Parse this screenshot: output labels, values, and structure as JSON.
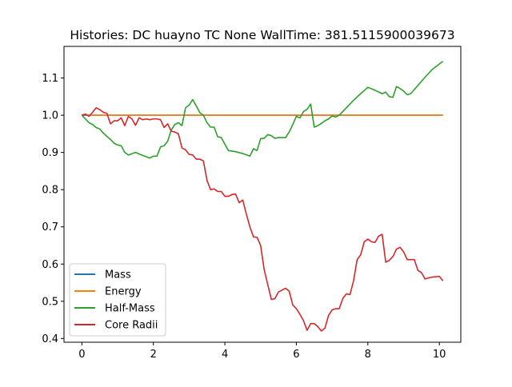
{
  "chart_data": {
    "type": "line",
    "title": "Histories: DC huayno TC None WallTime: 381.5115900039673",
    "xlabel": "",
    "ylabel": "",
    "xlim": [
      -0.5,
      10.6
    ],
    "ylim": [
      0.39,
      1.185
    ],
    "xticks": [
      0,
      2,
      4,
      6,
      8,
      10
    ],
    "xtick_labels": [
      "0",
      "2",
      "4",
      "6",
      "8",
      "10"
    ],
    "yticks": [
      0.4,
      0.5,
      0.6,
      0.7,
      0.8,
      0.9,
      1.0,
      1.1
    ],
    "ytick_labels": [
      "0.4",
      "0.5",
      "0.6",
      "0.7",
      "0.8",
      "0.9",
      "1.0",
      "1.1"
    ],
    "grid": false,
    "legend_position": "lower-left",
    "series": [
      {
        "name": "Mass",
        "color": "#1f77b4",
        "points": [
          [
            0.0,
            1.0
          ],
          [
            10.1,
            1.0
          ]
        ]
      },
      {
        "name": "Energy",
        "color": "#ff7f0e",
        "points": [
          [
            0.0,
            1.001
          ],
          [
            0.1,
            1.002
          ],
          [
            0.2,
            1.0
          ],
          [
            0.3,
            1.0
          ],
          [
            10.1,
            1.0
          ]
        ]
      },
      {
        "name": "Half-Mass",
        "color": "#2ca02c",
        "points": [
          [
            0.0,
            1.0
          ],
          [
            0.1,
            0.99
          ],
          [
            0.2,
            0.98
          ],
          [
            0.3,
            0.975
          ],
          [
            0.4,
            0.967
          ],
          [
            0.5,
            0.963
          ],
          [
            0.6,
            0.952
          ],
          [
            0.7,
            0.943
          ],
          [
            0.8,
            0.935
          ],
          [
            0.9,
            0.925
          ],
          [
            1.0,
            0.92
          ],
          [
            1.1,
            0.918
          ],
          [
            1.2,
            0.9
          ],
          [
            1.3,
            0.893
          ],
          [
            1.5,
            0.9
          ],
          [
            1.7,
            0.892
          ],
          [
            1.9,
            0.885
          ],
          [
            2.0,
            0.89
          ],
          [
            2.1,
            0.89
          ],
          [
            2.2,
            0.915
          ],
          [
            2.3,
            0.918
          ],
          [
            2.4,
            0.93
          ],
          [
            2.5,
            0.96
          ],
          [
            2.6,
            0.975
          ],
          [
            2.7,
            0.98
          ],
          [
            2.8,
            0.972
          ],
          [
            2.9,
            1.02
          ],
          [
            3.0,
            1.027
          ],
          [
            3.1,
            1.042
          ],
          [
            3.2,
            1.025
          ],
          [
            3.3,
            1.007
          ],
          [
            3.4,
            1.0
          ],
          [
            3.5,
            0.98
          ],
          [
            3.6,
            0.968
          ],
          [
            3.7,
            0.968
          ],
          [
            3.8,
            0.942
          ],
          [
            3.9,
            0.94
          ],
          [
            4.0,
            0.922
          ],
          [
            4.1,
            0.905
          ],
          [
            4.3,
            0.902
          ],
          [
            4.5,
            0.897
          ],
          [
            4.7,
            0.89
          ],
          [
            4.8,
            0.91
          ],
          [
            4.9,
            0.905
          ],
          [
            5.0,
            0.937
          ],
          [
            5.1,
            0.938
          ],
          [
            5.2,
            0.948
          ],
          [
            5.3,
            0.945
          ],
          [
            5.4,
            0.938
          ],
          [
            5.5,
            0.94
          ],
          [
            5.7,
            0.94
          ],
          [
            5.8,
            0.955
          ],
          [
            5.9,
            0.975
          ],
          [
            6.0,
            0.997
          ],
          [
            6.1,
            0.993
          ],
          [
            6.2,
            1.01
          ],
          [
            6.3,
            1.016
          ],
          [
            6.4,
            1.03
          ],
          [
            6.5,
            0.968
          ],
          [
            6.6,
            0.972
          ],
          [
            6.7,
            0.978
          ],
          [
            6.8,
            0.985
          ],
          [
            6.9,
            0.99
          ],
          [
            7.0,
            0.998
          ],
          [
            7.1,
            0.995
          ],
          [
            7.2,
            1.0
          ],
          [
            7.4,
            1.02
          ],
          [
            7.6,
            1.04
          ],
          [
            7.8,
            1.058
          ],
          [
            8.0,
            1.075
          ],
          [
            8.2,
            1.067
          ],
          [
            8.4,
            1.058
          ],
          [
            8.5,
            1.062
          ],
          [
            8.6,
            1.05
          ],
          [
            8.7,
            1.048
          ],
          [
            8.8,
            1.077
          ],
          [
            8.9,
            1.072
          ],
          [
            9.0,
            1.065
          ],
          [
            9.1,
            1.055
          ],
          [
            9.2,
            1.058
          ],
          [
            9.4,
            1.08
          ],
          [
            9.6,
            1.102
          ],
          [
            9.8,
            1.123
          ],
          [
            10.1,
            1.145
          ]
        ]
      },
      {
        "name": "Core Radii",
        "color": "#d62728",
        "points": [
          [
            0.0,
            1.0
          ],
          [
            0.1,
            1.003
          ],
          [
            0.2,
            0.997
          ],
          [
            0.3,
            1.008
          ],
          [
            0.4,
            1.02
          ],
          [
            0.5,
            1.015
          ],
          [
            0.6,
            1.008
          ],
          [
            0.7,
            1.005
          ],
          [
            0.8,
            0.977
          ],
          [
            0.9,
            0.985
          ],
          [
            1.0,
            0.985
          ],
          [
            1.1,
            0.993
          ],
          [
            1.2,
            0.972
          ],
          [
            1.3,
            0.997
          ],
          [
            1.4,
            0.99
          ],
          [
            1.5,
            0.973
          ],
          [
            1.6,
            0.993
          ],
          [
            1.7,
            0.988
          ],
          [
            1.8,
            0.99
          ],
          [
            1.9,
            0.988
          ],
          [
            2.0,
            0.99
          ],
          [
            2.1,
            0.99
          ],
          [
            2.2,
            0.988
          ],
          [
            2.3,
            0.967
          ],
          [
            2.4,
            0.977
          ],
          [
            2.5,
            0.957
          ],
          [
            2.6,
            0.955
          ],
          [
            2.7,
            0.95
          ],
          [
            2.8,
            0.912
          ],
          [
            2.9,
            0.907
          ],
          [
            3.0,
            0.895
          ],
          [
            3.1,
            0.893
          ],
          [
            3.2,
            0.882
          ],
          [
            3.3,
            0.882
          ],
          [
            3.4,
            0.877
          ],
          [
            3.5,
            0.825
          ],
          [
            3.6,
            0.8
          ],
          [
            3.7,
            0.802
          ],
          [
            3.8,
            0.795
          ],
          [
            3.9,
            0.795
          ],
          [
            4.0,
            0.782
          ],
          [
            4.1,
            0.782
          ],
          [
            4.2,
            0.787
          ],
          [
            4.3,
            0.788
          ],
          [
            4.4,
            0.765
          ],
          [
            4.5,
            0.772
          ],
          [
            4.6,
            0.735
          ],
          [
            4.7,
            0.7
          ],
          [
            4.8,
            0.673
          ],
          [
            4.9,
            0.672
          ],
          [
            5.0,
            0.65
          ],
          [
            5.1,
            0.585
          ],
          [
            5.2,
            0.545
          ],
          [
            5.3,
            0.505
          ],
          [
            5.4,
            0.507
          ],
          [
            5.5,
            0.525
          ],
          [
            5.6,
            0.53
          ],
          [
            5.7,
            0.535
          ],
          [
            5.8,
            0.527
          ],
          [
            5.9,
            0.49
          ],
          [
            6.0,
            0.48
          ],
          [
            6.1,
            0.465
          ],
          [
            6.2,
            0.448
          ],
          [
            6.3,
            0.422
          ],
          [
            6.4,
            0.44
          ],
          [
            6.5,
            0.44
          ],
          [
            6.6,
            0.432
          ],
          [
            6.7,
            0.42
          ],
          [
            6.8,
            0.428
          ],
          [
            6.9,
            0.462
          ],
          [
            7.0,
            0.477
          ],
          [
            7.1,
            0.48
          ],
          [
            7.2,
            0.48
          ],
          [
            7.3,
            0.508
          ],
          [
            7.4,
            0.52
          ],
          [
            7.5,
            0.518
          ],
          [
            7.6,
            0.555
          ],
          [
            7.7,
            0.612
          ],
          [
            7.8,
            0.625
          ],
          [
            7.9,
            0.66
          ],
          [
            8.0,
            0.667
          ],
          [
            8.1,
            0.66
          ],
          [
            8.2,
            0.658
          ],
          [
            8.3,
            0.675
          ],
          [
            8.4,
            0.68
          ],
          [
            8.5,
            0.605
          ],
          [
            8.6,
            0.61
          ],
          [
            8.7,
            0.62
          ],
          [
            8.8,
            0.64
          ],
          [
            8.9,
            0.645
          ],
          [
            9.0,
            0.633
          ],
          [
            9.1,
            0.612
          ],
          [
            9.3,
            0.612
          ],
          [
            9.4,
            0.583
          ],
          [
            9.5,
            0.577
          ],
          [
            9.6,
            0.56
          ],
          [
            9.7,
            0.563
          ],
          [
            9.8,
            0.565
          ],
          [
            10.0,
            0.567
          ],
          [
            10.1,
            0.555
          ]
        ]
      }
    ]
  }
}
